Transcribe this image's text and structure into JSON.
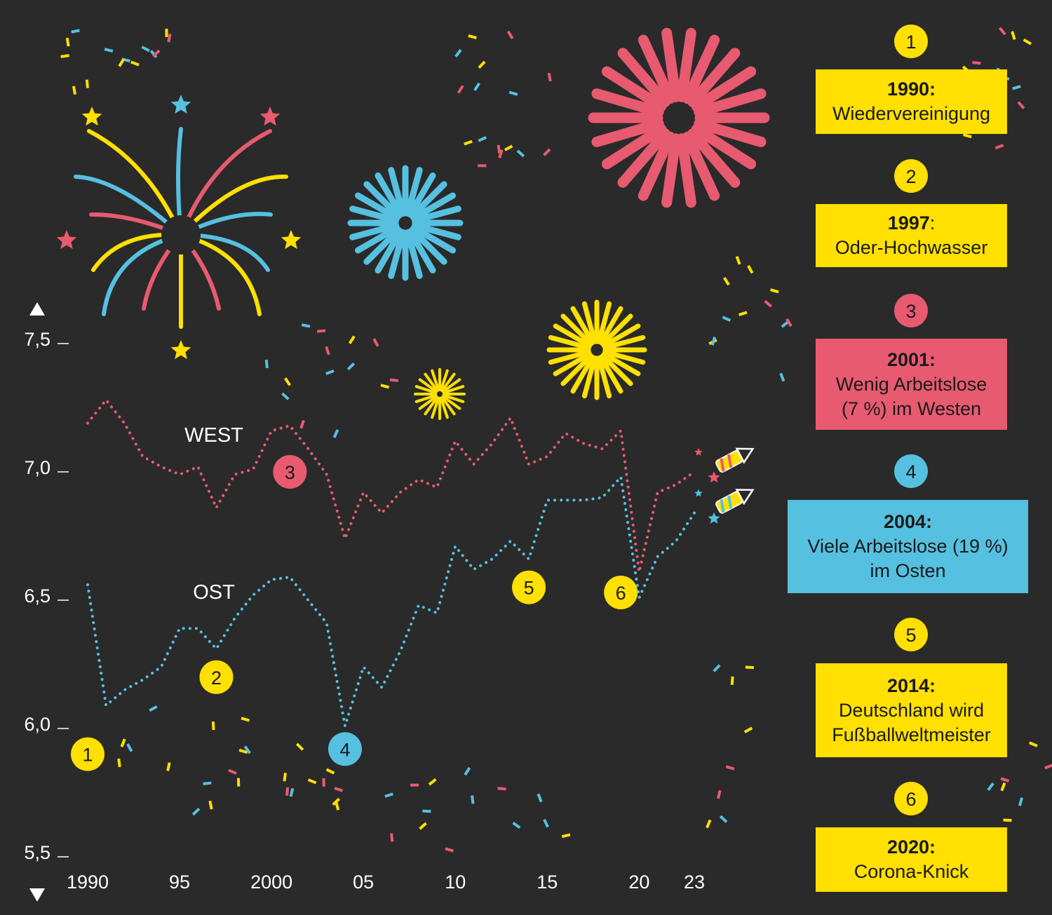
{
  "chart_data": {
    "type": "line",
    "x": [
      1990,
      1991,
      1992,
      1993,
      1994,
      1995,
      1996,
      1997,
      1998,
      1999,
      2000,
      2001,
      2002,
      2003,
      2004,
      2005,
      2006,
      2007,
      2008,
      2009,
      2010,
      2011,
      2012,
      2013,
      2014,
      2015,
      2016,
      2017,
      2018,
      2019,
      2020,
      2021,
      2022,
      2023
    ],
    "series": [
      {
        "name": "WEST",
        "color": "#e85a70",
        "values": [
          7.19,
          7.28,
          7.19,
          7.06,
          7.02,
          6.99,
          7.02,
          6.86,
          6.99,
          7.01,
          7.16,
          7.18,
          7.09,
          6.99,
          6.74,
          6.92,
          6.84,
          6.92,
          6.97,
          6.94,
          7.12,
          7.03,
          7.11,
          7.21,
          7.03,
          7.06,
          7.15,
          7.11,
          7.09,
          7.16,
          6.61,
          6.92,
          6.95,
          7.0
        ]
      },
      {
        "name": "OST",
        "color": "#56c0e0",
        "values": [
          6.56,
          6.09,
          6.15,
          6.19,
          6.24,
          6.39,
          6.39,
          6.31,
          6.43,
          6.52,
          6.58,
          6.59,
          6.5,
          6.41,
          6.01,
          6.24,
          6.16,
          6.3,
          6.48,
          6.45,
          6.71,
          6.62,
          6.66,
          6.73,
          6.66,
          6.89,
          6.89,
          6.89,
          6.9,
          6.98,
          6.51,
          6.67,
          6.73,
          6.84
        ]
      }
    ],
    "ylim": [
      5.5,
      7.5
    ],
    "yticks": [
      "7,5",
      "7,0",
      "6,5",
      "6,0",
      "5,5"
    ],
    "xtick_labels": [
      {
        "year": 1990,
        "label": "1990"
      },
      {
        "year": 1995,
        "label": "95"
      },
      {
        "year": 2000,
        "label": "2000"
      },
      {
        "year": 2005,
        "label": "05"
      },
      {
        "year": 2010,
        "label": "10"
      },
      {
        "year": 2015,
        "label": "15"
      },
      {
        "year": 2020,
        "label": "20"
      },
      {
        "year": 2023,
        "label": "23"
      }
    ],
    "series_labels": [
      "WEST",
      "OST"
    ],
    "annotations": [
      {
        "num": "1",
        "year": 1990,
        "value": 5.9,
        "color": "#ffe000"
      },
      {
        "num": "2",
        "year": 1997,
        "value": 6.2,
        "color": "#ffe000"
      },
      {
        "num": "3",
        "year": 2001,
        "value": 7.0,
        "color": "#e85a70"
      },
      {
        "num": "4",
        "year": 2004,
        "value": 5.92,
        "color": "#56c0e0"
      },
      {
        "num": "5",
        "year": 2014,
        "value": 6.55,
        "color": "#ffe000"
      },
      {
        "num": "6",
        "year": 2019,
        "value": 6.53,
        "color": "#ffe000"
      }
    ]
  },
  "legend": [
    {
      "num": "1",
      "year": "1990:",
      "lines": [
        "Wiedervereinigung"
      ],
      "color": "#ffe000"
    },
    {
      "num": "2",
      "year": "1997",
      "year_suffix": ":",
      "lines": [
        "Oder-Hochwasser"
      ],
      "color": "#ffe000"
    },
    {
      "num": "3",
      "year": "2001:",
      "lines": [
        "Wenig  Arbeitslose",
        "(7 %) im Westen"
      ],
      "color": "#e85a70"
    },
    {
      "num": "4",
      "year": "2004:",
      "lines": [
        "Viele Arbeitslose (19 %)",
        "im Osten"
      ],
      "color": "#56c0e0"
    },
    {
      "num": "5",
      "year": "2014:",
      "lines": [
        "Deutschland wird",
        "Fußballweltmeister"
      ],
      "color": "#ffe000"
    },
    {
      "num": "6",
      "year": "2020:",
      "lines": [
        "Corona-Knick"
      ],
      "color": "#ffe000"
    }
  ],
  "colors": {
    "background": "#2a2a2a",
    "yellow": "#ffe000",
    "pink": "#e85a70",
    "blue": "#56c0e0",
    "text": "#ffffff"
  }
}
